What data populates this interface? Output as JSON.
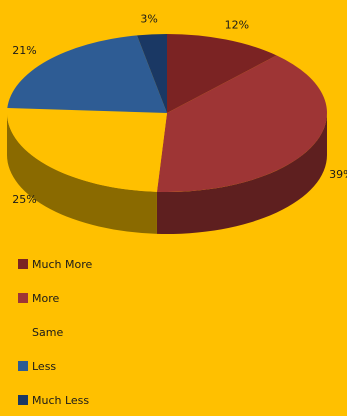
{
  "chart_data": {
    "type": "pie",
    "categories": [
      "Much More",
      "More",
      "Same",
      "Less",
      "Much Less"
    ],
    "values": [
      12,
      39,
      25,
      21,
      3
    ],
    "labels": [
      "12%",
      "39%",
      "25%",
      "21%",
      "3%"
    ],
    "colors": [
      "#7B2323",
      "#9E3535",
      "#FFC000",
      "#2E5C94",
      "#1A3864"
    ],
    "side_colors": [
      "#4E1616",
      "#5E1F1F",
      "#8A6A00",
      "#1A3D63",
      "#0E2240"
    ],
    "legend_position": "bottom-left",
    "three_d": true
  },
  "legend": {
    "items": [
      {
        "label": "Much More",
        "color": "#7B2323"
      },
      {
        "label": "More",
        "color": "#9E3535"
      },
      {
        "label": "Same",
        "color": "#FFC000"
      },
      {
        "label": "Less",
        "color": "#2E5C94"
      },
      {
        "label": "Much Less",
        "color": "#1A3864"
      }
    ]
  }
}
